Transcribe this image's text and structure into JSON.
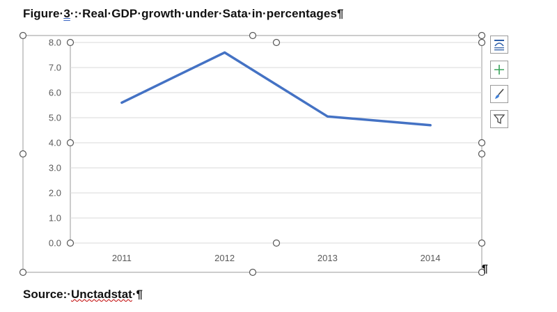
{
  "caption": {
    "prefix": "Figure·",
    "number": "3",
    "rest": "·:·Real·GDP·growth·under·Sata·in·percentages¶"
  },
  "source": {
    "label": "Source:·",
    "name": "Unctadstat",
    "tail": "·¶"
  },
  "paragraph_mark": "¶",
  "side_buttons": [
    {
      "name": "chart-elements-button",
      "icon": "chart-elements-icon"
    },
    {
      "name": "add-element-button",
      "icon": "plus-icon"
    },
    {
      "name": "chart-styles-button",
      "icon": "paintbrush-icon"
    },
    {
      "name": "chart-filters-button",
      "icon": "filter-icon"
    }
  ],
  "colors": {
    "line": "#4472c4",
    "grid": "#d9d9d9",
    "axis_text": "#595959",
    "accent": "#217346"
  },
  "chart_data": {
    "type": "line",
    "categories": [
      "2011",
      "2012",
      "2013",
      "2014"
    ],
    "series": [
      {
        "values": [
          5.6,
          7.6,
          5.05,
          4.7
        ]
      }
    ],
    "ylim": [
      0,
      8
    ],
    "yticks": [
      "0.0",
      "1.0",
      "2.0",
      "3.0",
      "4.0",
      "5.0",
      "6.0",
      "7.0",
      "8.0"
    ],
    "grid": true,
    "title": "",
    "xlabel": "",
    "ylabel": ""
  }
}
